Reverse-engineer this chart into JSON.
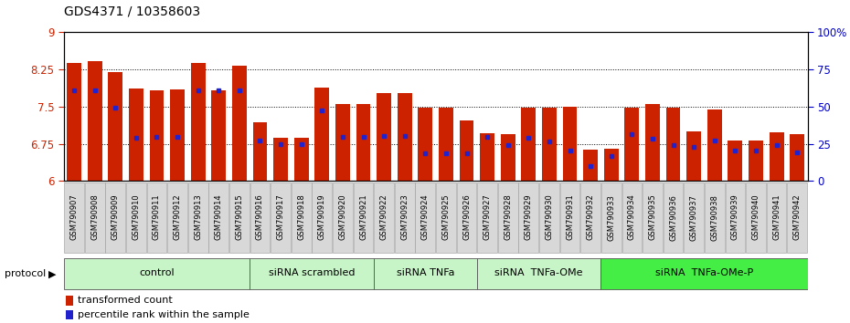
{
  "title": "GDS4371 / 10358603",
  "samples": [
    "GSM790907",
    "GSM790908",
    "GSM790909",
    "GSM790910",
    "GSM790911",
    "GSM790912",
    "GSM790913",
    "GSM790914",
    "GSM790915",
    "GSM790916",
    "GSM790917",
    "GSM790918",
    "GSM790919",
    "GSM790920",
    "GSM790921",
    "GSM790922",
    "GSM790923",
    "GSM790924",
    "GSM790925",
    "GSM790926",
    "GSM790927",
    "GSM790928",
    "GSM790929",
    "GSM790930",
    "GSM790931",
    "GSM790932",
    "GSM790933",
    "GSM790934",
    "GSM790935",
    "GSM790936",
    "GSM790937",
    "GSM790938",
    "GSM790939",
    "GSM790940",
    "GSM790941",
    "GSM790942"
  ],
  "bar_heights": [
    8.38,
    8.42,
    8.19,
    7.87,
    7.82,
    7.84,
    8.38,
    7.82,
    8.32,
    7.18,
    6.87,
    6.87,
    7.88,
    7.55,
    7.55,
    7.78,
    7.78,
    7.47,
    7.47,
    7.22,
    6.97,
    6.95,
    7.48,
    7.48,
    7.5,
    6.63,
    6.65,
    7.47,
    7.55,
    7.48,
    7.0,
    7.45,
    6.82,
    6.82,
    6.98,
    6.95
  ],
  "blue_dot_heights": [
    7.82,
    7.82,
    7.48,
    6.87,
    6.88,
    6.88,
    7.82,
    7.82,
    7.82,
    6.82,
    6.75,
    6.75,
    7.42,
    6.88,
    6.88,
    6.9,
    6.9,
    6.55,
    6.55,
    6.55,
    6.88,
    6.72,
    6.87,
    6.8,
    6.62,
    6.3,
    6.5,
    6.95,
    6.85,
    6.72,
    6.68,
    6.82,
    6.62,
    6.62,
    6.72,
    6.58
  ],
  "groups": [
    {
      "label": "control",
      "start": 0,
      "end": 9,
      "color": "#c8f5c8"
    },
    {
      "label": "siRNA scrambled",
      "start": 9,
      "end": 15,
      "color": "#c8f5c8"
    },
    {
      "label": "siRNA TNFa",
      "start": 15,
      "end": 20,
      "color": "#c8f5c8"
    },
    {
      "label": "siRNA  TNFa-OMe",
      "start": 20,
      "end": 26,
      "color": "#c8f5c8"
    },
    {
      "label": "siRNA  TNFa-OMe-P",
      "start": 26,
      "end": 36,
      "color": "#44ee44"
    }
  ],
  "bar_color": "#cc2200",
  "dot_color": "#2222cc",
  "ylim_left": [
    6,
    9
  ],
  "yticks_left": [
    6,
    6.75,
    7.5,
    8.25,
    9
  ],
  "ytick_labels_left": [
    "6",
    "6.75",
    "7.5",
    "8.25",
    "9"
  ],
  "ylim_right": [
    0,
    100
  ],
  "yticks_right": [
    0,
    25,
    50,
    75,
    100
  ],
  "ytick_labels_right": [
    "0",
    "25",
    "50",
    "75",
    "100%"
  ],
  "background_color": "#ffffff",
  "xlabel_color": "#cc2200",
  "ylabel_right_color": "#0000cc",
  "bar_width": 0.7
}
